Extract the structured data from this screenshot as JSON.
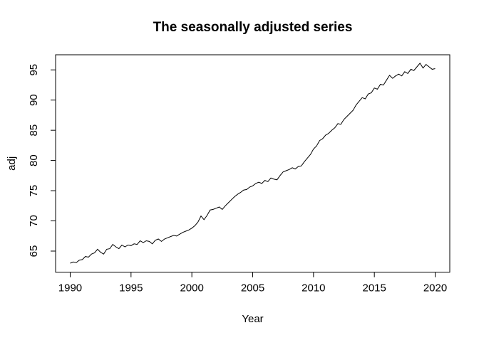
{
  "figure": {
    "background": "#ffffff",
    "foreground": "#000000"
  },
  "chart_data": {
    "type": "line",
    "title": "The seasonally adjusted series",
    "xlabel": "Year",
    "ylabel": "adj",
    "legend": null,
    "grid": false,
    "line_color": "#000000",
    "xlim": [
      1988.8,
      2021.2
    ],
    "ylim": [
      61.5,
      97.5
    ],
    "xticks": [
      1990,
      1995,
      2000,
      2005,
      2010,
      2015,
      2020
    ],
    "yticks": [
      65,
      70,
      75,
      80,
      85,
      90,
      95
    ],
    "x": [
      1990.0,
      1990.25,
      1990.5,
      1990.75,
      1991.0,
      1991.25,
      1991.5,
      1991.75,
      1992.0,
      1992.25,
      1992.5,
      1992.75,
      1993.0,
      1993.25,
      1993.5,
      1993.75,
      1994.0,
      1994.25,
      1994.5,
      1994.75,
      1995.0,
      1995.25,
      1995.5,
      1995.75,
      1996.0,
      1996.25,
      1996.5,
      1996.75,
      1997.0,
      1997.25,
      1997.5,
      1997.75,
      1998.0,
      1998.25,
      1998.5,
      1998.75,
      1999.0,
      1999.25,
      1999.5,
      1999.75,
      2000.0,
      2000.25,
      2000.5,
      2000.75,
      2001.0,
      2001.25,
      2001.5,
      2001.75,
      2002.0,
      2002.25,
      2002.5,
      2002.75,
      2003.0,
      2003.25,
      2003.5,
      2003.75,
      2004.0,
      2004.25,
      2004.5,
      2004.75,
      2005.0,
      2005.25,
      2005.5,
      2005.75,
      2006.0,
      2006.25,
      2006.5,
      2006.75,
      2007.0,
      2007.25,
      2007.5,
      2007.75,
      2008.0,
      2008.25,
      2008.5,
      2008.75,
      2009.0,
      2009.25,
      2009.5,
      2009.75,
      2010.0,
      2010.25,
      2010.5,
      2010.75,
      2011.0,
      2011.25,
      2011.5,
      2011.75,
      2012.0,
      2012.25,
      2012.5,
      2012.75,
      2013.0,
      2013.25,
      2013.5,
      2013.75,
      2014.0,
      2014.25,
      2014.5,
      2014.75,
      2015.0,
      2015.25,
      2015.5,
      2015.75,
      2016.0,
      2016.25,
      2016.5,
      2016.75,
      2017.0,
      2017.25,
      2017.5,
      2017.75,
      2018.0,
      2018.25,
      2018.5,
      2018.75,
      2019.0,
      2019.25,
      2019.5,
      2019.75,
      2020.0
    ],
    "y": [
      63.0,
      63.2,
      63.1,
      63.5,
      63.6,
      64.1,
      64.0,
      64.5,
      64.7,
      65.3,
      64.8,
      64.5,
      65.3,
      65.4,
      66.1,
      65.7,
      65.4,
      66.0,
      65.7,
      66.0,
      65.9,
      66.2,
      66.1,
      66.7,
      66.4,
      66.7,
      66.6,
      66.2,
      66.8,
      67.0,
      66.6,
      67.0,
      67.2,
      67.4,
      67.6,
      67.5,
      67.8,
      68.1,
      68.3,
      68.5,
      68.8,
      69.2,
      69.8,
      70.8,
      70.2,
      70.9,
      71.8,
      71.9,
      72.1,
      72.3,
      71.9,
      72.5,
      73.0,
      73.5,
      74.0,
      74.4,
      74.7,
      75.1,
      75.2,
      75.6,
      75.8,
      76.2,
      76.4,
      76.2,
      76.7,
      76.5,
      77.1,
      76.9,
      76.8,
      77.5,
      78.1,
      78.3,
      78.5,
      78.8,
      78.6,
      79.0,
      79.1,
      79.8,
      80.4,
      81.0,
      81.9,
      82.4,
      83.3,
      83.6,
      84.2,
      84.5,
      85.0,
      85.4,
      86.1,
      86.0,
      86.8,
      87.3,
      87.8,
      88.3,
      89.2,
      89.8,
      90.4,
      90.2,
      91.0,
      91.2,
      92.0,
      91.8,
      92.6,
      92.5,
      93.3,
      94.1,
      93.6,
      94.0,
      94.3,
      94.0,
      94.7,
      94.4,
      95.1,
      94.9,
      95.5,
      96.1,
      95.3,
      95.9,
      95.5,
      95.1,
      95.2
    ]
  }
}
